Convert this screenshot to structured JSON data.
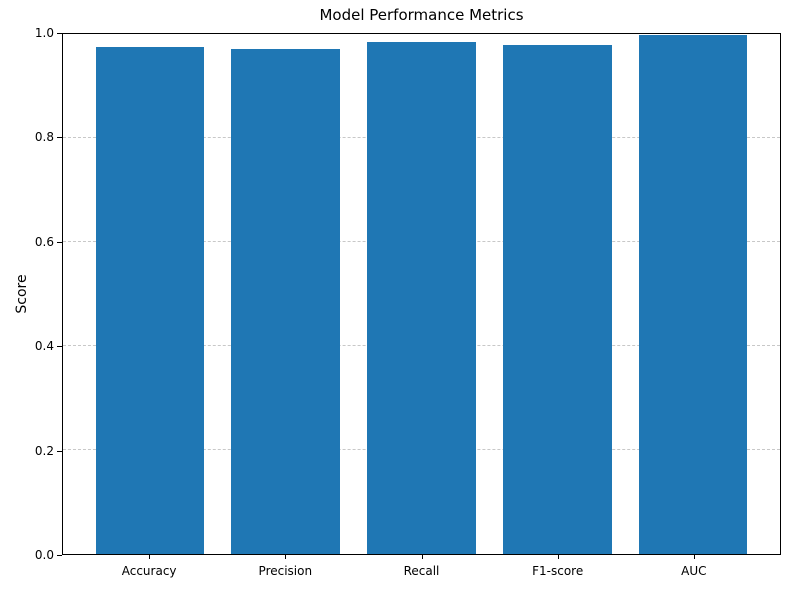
{
  "chart_data": {
    "type": "bar",
    "title": "Model Performance Metrics",
    "xlabel": "",
    "ylabel": "Score",
    "categories": [
      "Accuracy",
      "Precision",
      "Recall",
      "F1-score",
      "AUC"
    ],
    "values": [
      0.975,
      0.972,
      0.984,
      0.979,
      0.998
    ],
    "ylim": [
      0.0,
      1.0
    ],
    "ytick_values": [
      0.0,
      0.2,
      0.4,
      0.6,
      0.8,
      1.0
    ],
    "ytick_labels": [
      "0.0",
      "0.2",
      "0.4",
      "0.6",
      "0.8",
      "1.0"
    ],
    "bar_color": "#1f77b4",
    "grid": "horizontal-dashed",
    "gridline_color": "#c8c8c8",
    "legend_position": "none",
    "bar_width_fraction": 0.8,
    "x_margin_units": 0.24
  }
}
